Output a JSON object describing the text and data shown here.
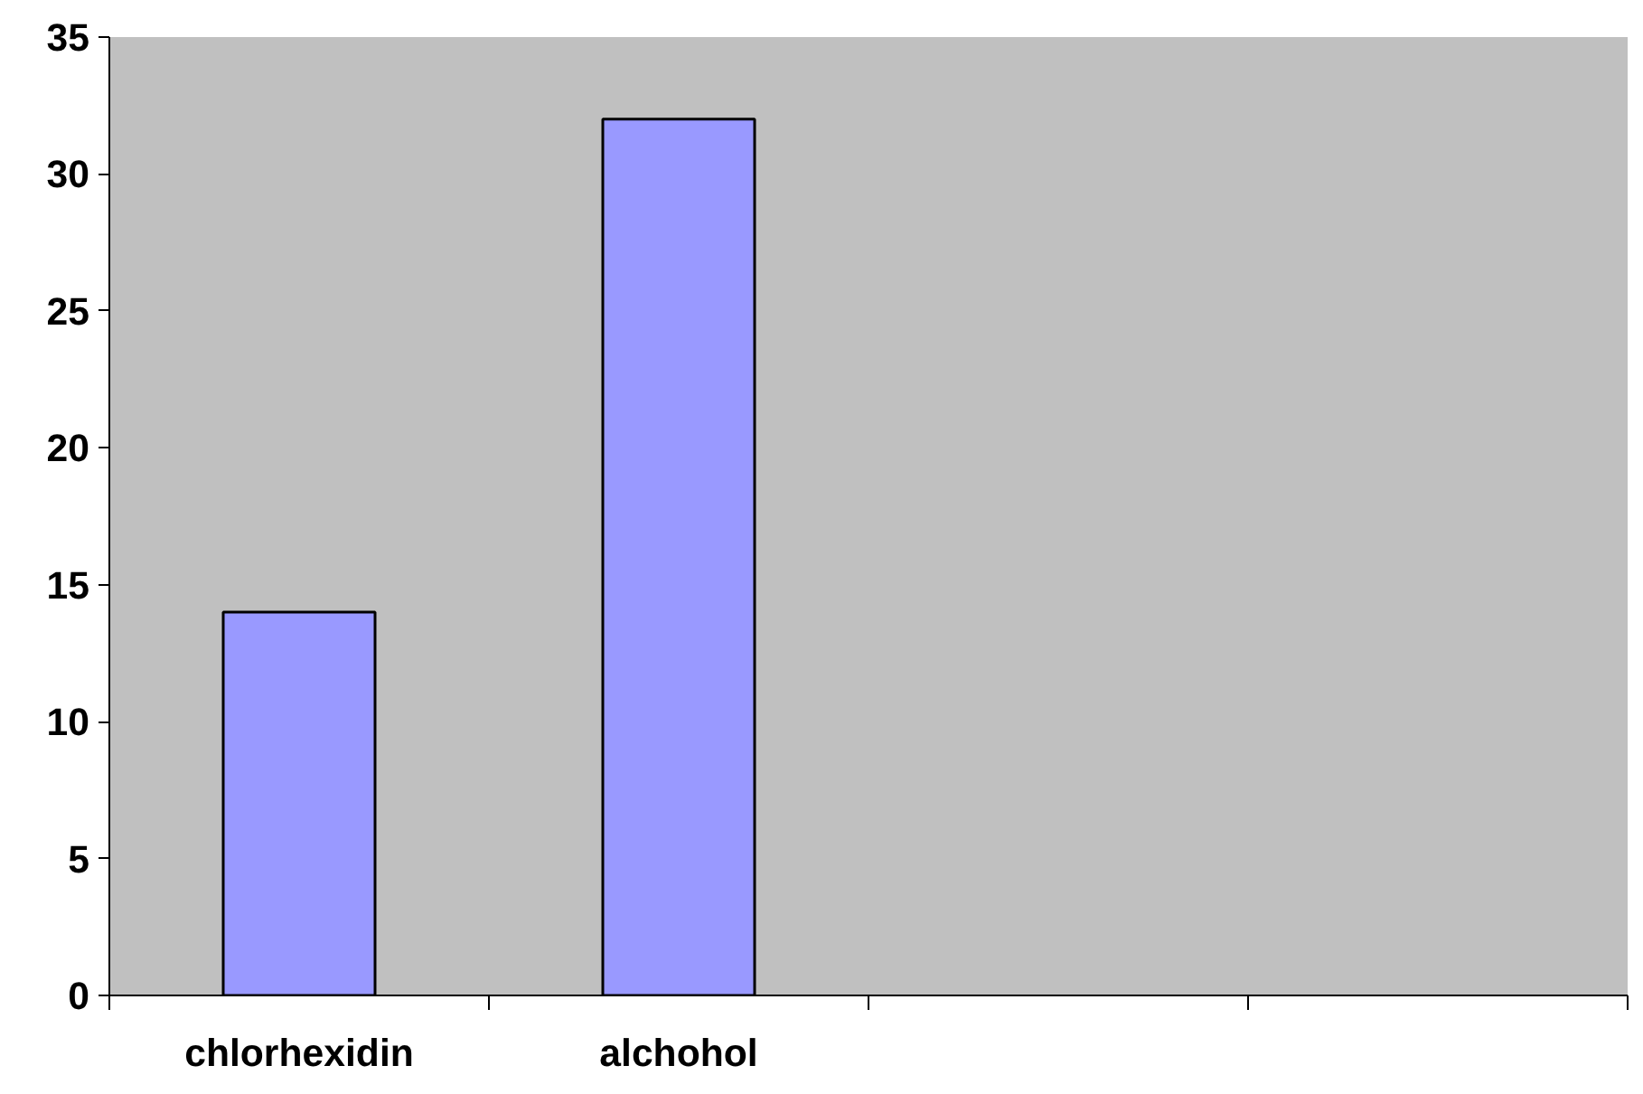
{
  "chart_data": {
    "type": "bar",
    "categories": [
      "chlorhexidin",
      "alchohol",
      null,
      null
    ],
    "values": [
      14,
      32,
      null,
      null
    ],
    "color": "#9999ff",
    "ylim": [
      0,
      35
    ],
    "yticks": [
      0,
      5,
      10,
      15,
      20,
      25,
      30,
      35
    ],
    "grid": false
  }
}
